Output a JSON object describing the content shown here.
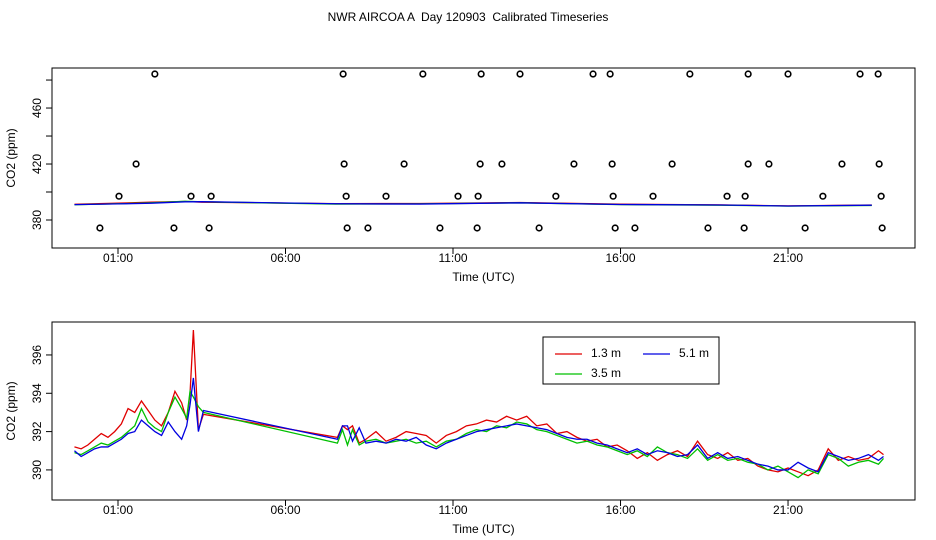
{
  "chart_data": [
    {
      "type": "line",
      "title": "NWR AIRCOA A  Day 120903  Calibrated Timeseries",
      "x_label": "Time (UTC)",
      "y_label": "CO2 (ppm)",
      "xlim": [
        -0.97,
        24.79
      ],
      "xticks": [
        {
          "value": 1,
          "label": "01:00"
        },
        {
          "value": 6,
          "label": "06:00"
        },
        {
          "value": 11,
          "label": "11:00"
        },
        {
          "value": 16,
          "label": "16:00"
        },
        {
          "value": 21,
          "label": "21:00"
        }
      ],
      "ylim": [
        360,
        488.6
      ],
      "yticks": [
        380,
        420,
        460
      ],
      "yminorticks": [
        400,
        440,
        480
      ],
      "x": [
        -0.3,
        1,
        2,
        3,
        3.5,
        7.5,
        10,
        13,
        16,
        19,
        21,
        23.5
      ],
      "series": [
        {
          "color": "#e00000",
          "values": [
            391.2,
            392,
            392.8,
            393.2,
            392.7,
            391.7,
            391.8,
            392.5,
            391.3,
            390.8,
            390.1,
            390.7
          ]
        },
        {
          "color": "#00c000",
          "values": [
            390.9,
            391.6,
            392.3,
            393.4,
            393.0,
            391.4,
            391.5,
            392.3,
            391.0,
            390.6,
            389.9,
            390.4
          ]
        },
        {
          "color": "#0000e0",
          "values": [
            391.0,
            391.5,
            392.0,
            393.0,
            393.1,
            391.6,
            391.4,
            392.3,
            391.1,
            390.7,
            390.0,
            390.6
          ]
        }
      ],
      "markers": {
        "color": "#000000",
        "x": [
          2.1,
          7.72,
          10.1,
          11.84,
          13.0,
          15.18,
          15.69,
          18.07,
          19.81,
          21.0,
          23.15,
          23.69,
          1.54,
          7.75,
          9.54,
          11.81,
          12.46,
          14.61,
          15.75,
          17.54,
          19.81,
          20.43,
          22.61,
          23.72,
          1.03,
          3.18,
          3.78,
          7.81,
          9.0,
          11.15,
          11.75,
          14.07,
          15.78,
          16.97,
          19.18,
          19.72,
          22.04,
          23.78,
          0.46,
          2.67,
          3.72,
          7.84,
          8.46,
          10.61,
          11.72,
          13.57,
          15.84,
          16.43,
          18.61,
          19.69,
          21.51,
          23.81
        ],
        "values": [
          484.3,
          484.3,
          484.3,
          484.3,
          484.3,
          484.3,
          484.3,
          484.3,
          484.3,
          484.3,
          484.3,
          484.3,
          420,
          420,
          420,
          420,
          420,
          420,
          420,
          420,
          420,
          420,
          420,
          420,
          397,
          397,
          397,
          397,
          397,
          397,
          397,
          397,
          397,
          397,
          397,
          397,
          397,
          397,
          374.3,
          374.3,
          374.3,
          374.3,
          374.3,
          374.3,
          374.3,
          374.3,
          374.3,
          374.3,
          374.3,
          374.3,
          374.3,
          374.3
        ]
      }
    },
    {
      "type": "line",
      "x_label": "Time (UTC)",
      "y_label": "CO2 (ppm)",
      "xlim": [
        -0.97,
        24.79
      ],
      "xticks": [
        {
          "value": 1,
          "label": "01:00"
        },
        {
          "value": 6,
          "label": "06:00"
        },
        {
          "value": 11,
          "label": "11:00"
        },
        {
          "value": 16,
          "label": "16:00"
        },
        {
          "value": 21,
          "label": "21:00"
        }
      ],
      "ylim": [
        388.43,
        397.72
      ],
      "yticks": [
        390,
        392,
        394,
        396
      ],
      "legend": true,
      "x": [
        -0.3,
        -0.1,
        0.1,
        0.3,
        0.5,
        0.7,
        0.9,
        1.1,
        1.3,
        1.5,
        1.7,
        1.9,
        2.1,
        2.3,
        2.5,
        2.7,
        2.9,
        3.05,
        3.15,
        3.25,
        3.4,
        3.55,
        7.55,
        7.7,
        7.85,
        8.0,
        8.2,
        8.4,
        8.7,
        9.0,
        9.3,
        9.6,
        9.9,
        10.2,
        10.5,
        10.8,
        11.1,
        11.4,
        11.7,
        12.0,
        12.3,
        12.6,
        12.9,
        13.2,
        13.5,
        13.8,
        14.1,
        14.4,
        14.7,
        15.0,
        15.3,
        15.6,
        15.9,
        16.2,
        16.5,
        16.8,
        17.1,
        17.4,
        17.7,
        18.0,
        18.3,
        18.6,
        18.9,
        19.2,
        19.5,
        19.8,
        20.1,
        20.4,
        20.7,
        21.0,
        21.3,
        21.6,
        21.9,
        22.2,
        22.5,
        22.8,
        23.1,
        23.4,
        23.7,
        23.85
      ],
      "series": [
        {
          "name": "1.3 m",
          "color": "#e00000",
          "values": [
            391.2,
            391.1,
            391.3,
            391.6,
            391.9,
            391.7,
            392.0,
            392.4,
            393.2,
            393.0,
            393.6,
            393.1,
            392.6,
            392.3,
            393.0,
            394.1,
            393.5,
            392.6,
            394.0,
            397.3,
            392.1,
            392.9,
            391.7,
            392.3,
            392.1,
            392.3,
            391.4,
            391.6,
            392.0,
            391.5,
            391.7,
            392.0,
            391.9,
            391.8,
            391.4,
            391.8,
            392.0,
            392.3,
            392.4,
            392.6,
            392.5,
            392.8,
            392.6,
            392.8,
            392.3,
            392.4,
            391.9,
            392.0,
            391.7,
            391.5,
            391.6,
            391.2,
            391.3,
            391.0,
            390.6,
            390.9,
            390.5,
            390.8,
            391.0,
            390.7,
            391.5,
            390.8,
            390.6,
            390.9,
            390.5,
            390.6,
            390.2,
            390.0,
            389.9,
            390.1,
            389.9,
            389.7,
            390.0,
            391.1,
            390.5,
            390.7,
            390.5,
            390.6,
            391.0,
            390.8
          ]
        },
        {
          "name": "3.5 m",
          "color": "#00c000",
          "values": [
            390.9,
            390.8,
            391.0,
            391.2,
            391.4,
            391.3,
            391.5,
            391.7,
            392.0,
            392.3,
            393.2,
            392.5,
            392.2,
            392.0,
            393.0,
            393.8,
            393.2,
            392.7,
            394.1,
            393.8,
            393.3,
            393.0,
            391.4,
            392.1,
            391.3,
            392.1,
            391.3,
            391.5,
            391.6,
            391.4,
            391.5,
            391.6,
            391.4,
            391.5,
            391.2,
            391.5,
            391.6,
            391.9,
            392.1,
            392.0,
            392.3,
            392.2,
            392.5,
            392.4,
            392.1,
            392.0,
            391.8,
            391.6,
            391.4,
            391.5,
            391.3,
            391.2,
            391.0,
            390.8,
            391.0,
            390.7,
            391.2,
            390.9,
            390.8,
            390.6,
            391.1,
            390.5,
            390.8,
            390.5,
            390.6,
            390.4,
            390.3,
            390.0,
            390.2,
            389.9,
            389.6,
            390.0,
            389.8,
            390.8,
            390.6,
            390.2,
            390.4,
            390.5,
            390.3,
            390.6
          ]
        },
        {
          "name": "5.1 m",
          "color": "#0000e0",
          "values": [
            391.0,
            390.7,
            390.9,
            391.1,
            391.2,
            391.2,
            391.4,
            391.6,
            391.9,
            392.0,
            392.6,
            392.3,
            392.0,
            391.8,
            392.5,
            392.0,
            391.6,
            392.3,
            393.4,
            394.8,
            392.0,
            393.1,
            391.6,
            392.3,
            392.3,
            391.5,
            392.2,
            391.4,
            391.5,
            391.4,
            391.6,
            391.5,
            391.7,
            391.3,
            391.1,
            391.4,
            391.6,
            391.8,
            392.0,
            392.1,
            392.2,
            392.3,
            392.4,
            392.3,
            392.2,
            392.1,
            391.9,
            391.7,
            391.6,
            391.6,
            391.4,
            391.3,
            391.1,
            390.9,
            391.1,
            390.8,
            391.0,
            390.9,
            390.7,
            390.8,
            391.3,
            390.6,
            390.9,
            390.6,
            390.7,
            390.5,
            390.3,
            390.2,
            390.0,
            390.0,
            390.4,
            390.1,
            389.9,
            390.9,
            390.7,
            390.5,
            390.6,
            390.8,
            390.5,
            390.7
          ]
        }
      ]
    }
  ]
}
